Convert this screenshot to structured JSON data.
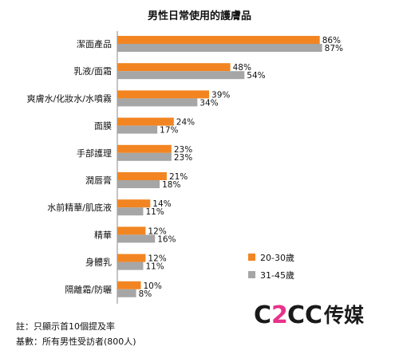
{
  "chart_data": {
    "type": "bar",
    "orientation": "horizontal",
    "title": "男性日常使用的護膚品",
    "categories": [
      "潔面產品",
      "乳液/面霜",
      "爽膚水/化妝水/水噴霧",
      "面膜",
      "手部護理",
      "潤唇膏",
      "水前精華/肌底液",
      "精華",
      "身體乳",
      "隔離霜/防曬"
    ],
    "series": [
      {
        "name": "20-30歲",
        "color": "#f28522",
        "values": [
          86,
          48,
          39,
          24,
          23,
          21,
          14,
          12,
          12,
          10
        ],
        "labels": [
          "86%",
          "48%",
          "39%",
          "24%",
          "23%",
          "21%",
          "14%",
          "12%",
          "12%",
          "10%"
        ]
      },
      {
        "name": "31-45歲",
        "color": "#a6a6a6",
        "values": [
          87,
          54,
          34,
          17,
          23,
          18,
          11,
          16,
          11,
          8
        ],
        "labels": [
          "87%",
          "54%",
          "34%",
          "17%",
          "23%",
          "18%",
          "11%",
          "16%",
          "11%",
          "8%"
        ]
      }
    ],
    "xlim": [
      0,
      100
    ],
    "legend_position": "bottom-right",
    "grid": false
  },
  "notes": [
    "註：只顯示首10個提及率",
    "基數：所有男性受訪者(800人)"
  ],
  "logo": {
    "letters": [
      "C",
      "2",
      "C",
      "C"
    ],
    "text_cn": "传媒",
    "color_dark": "#1a1a1a",
    "color_accent": "#e8318a"
  }
}
